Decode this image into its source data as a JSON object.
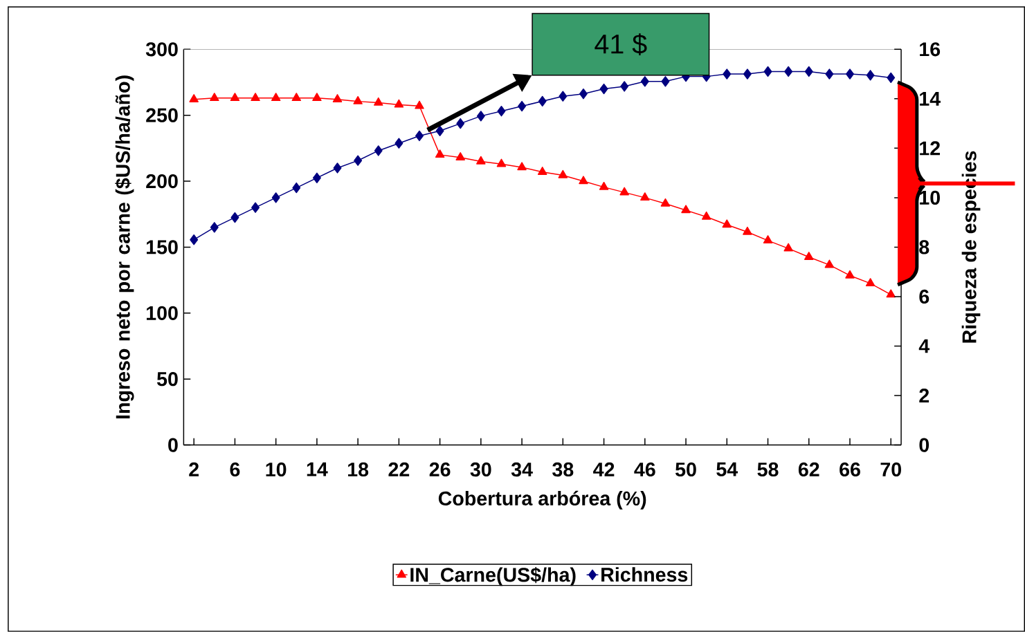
{
  "chart_data": {
    "type": "line",
    "xlabel": "Cobertura arbórea (%)",
    "ylabel": "Ingreso neto por carne ($US/ha/año)",
    "y2label": "Riqueza de especies",
    "annotations": [
      "41 $"
    ],
    "x": [
      2,
      4,
      6,
      8,
      10,
      12,
      14,
      16,
      18,
      20,
      22,
      24,
      26,
      28,
      30,
      32,
      34,
      36,
      38,
      40,
      42,
      44,
      46,
      48,
      50,
      52,
      54,
      56,
      58,
      60,
      62,
      64,
      66,
      68,
      70
    ],
    "series": [
      {
        "name": "IN_Carne(US$/ha)",
        "color": "#ff0000",
        "marker": "triangle",
        "values": [
          262,
          263,
          263,
          263,
          263,
          263,
          263,
          262,
          260.5,
          259.5,
          258,
          257,
          220,
          218,
          215,
          213,
          210.5,
          207,
          204.5,
          200,
          195.5,
          191.5,
          187.5,
          183,
          178,
          173,
          167,
          161.5,
          155,
          149,
          142.5,
          136.5,
          128.5,
          122.5,
          114
        ]
      },
      {
        "name": "Richness",
        "color": "#000080",
        "marker": "diamond",
        "axis": "y2",
        "values": [
          8.3,
          8.8,
          9.2,
          9.6,
          10.0,
          10.4,
          10.8,
          11.2,
          11.5,
          11.9,
          12.2,
          12.5,
          12.7,
          13.0,
          13.3,
          13.5,
          13.7,
          13.9,
          14.1,
          14.2,
          14.4,
          14.5,
          14.7,
          14.7,
          14.9,
          14.9,
          15.0,
          15.0,
          15.1,
          15.1,
          15.1,
          15.0,
          15.0,
          14.95,
          14.85
        ]
      }
    ],
    "xlim": [
      1,
      71
    ],
    "xticks": [
      2,
      6,
      10,
      14,
      18,
      22,
      26,
      30,
      34,
      38,
      42,
      46,
      50,
      54,
      58,
      62,
      66,
      70
    ],
    "ylim": [
      0,
      300
    ],
    "yticks": [
      0,
      50,
      100,
      150,
      200,
      250,
      300
    ],
    "y2lim": [
      0,
      16
    ],
    "y2ticks": [
      0,
      2,
      4,
      6,
      8,
      10,
      12,
      14,
      16
    ],
    "grid": false,
    "legend": "bottom",
    "line_style": "solid"
  }
}
